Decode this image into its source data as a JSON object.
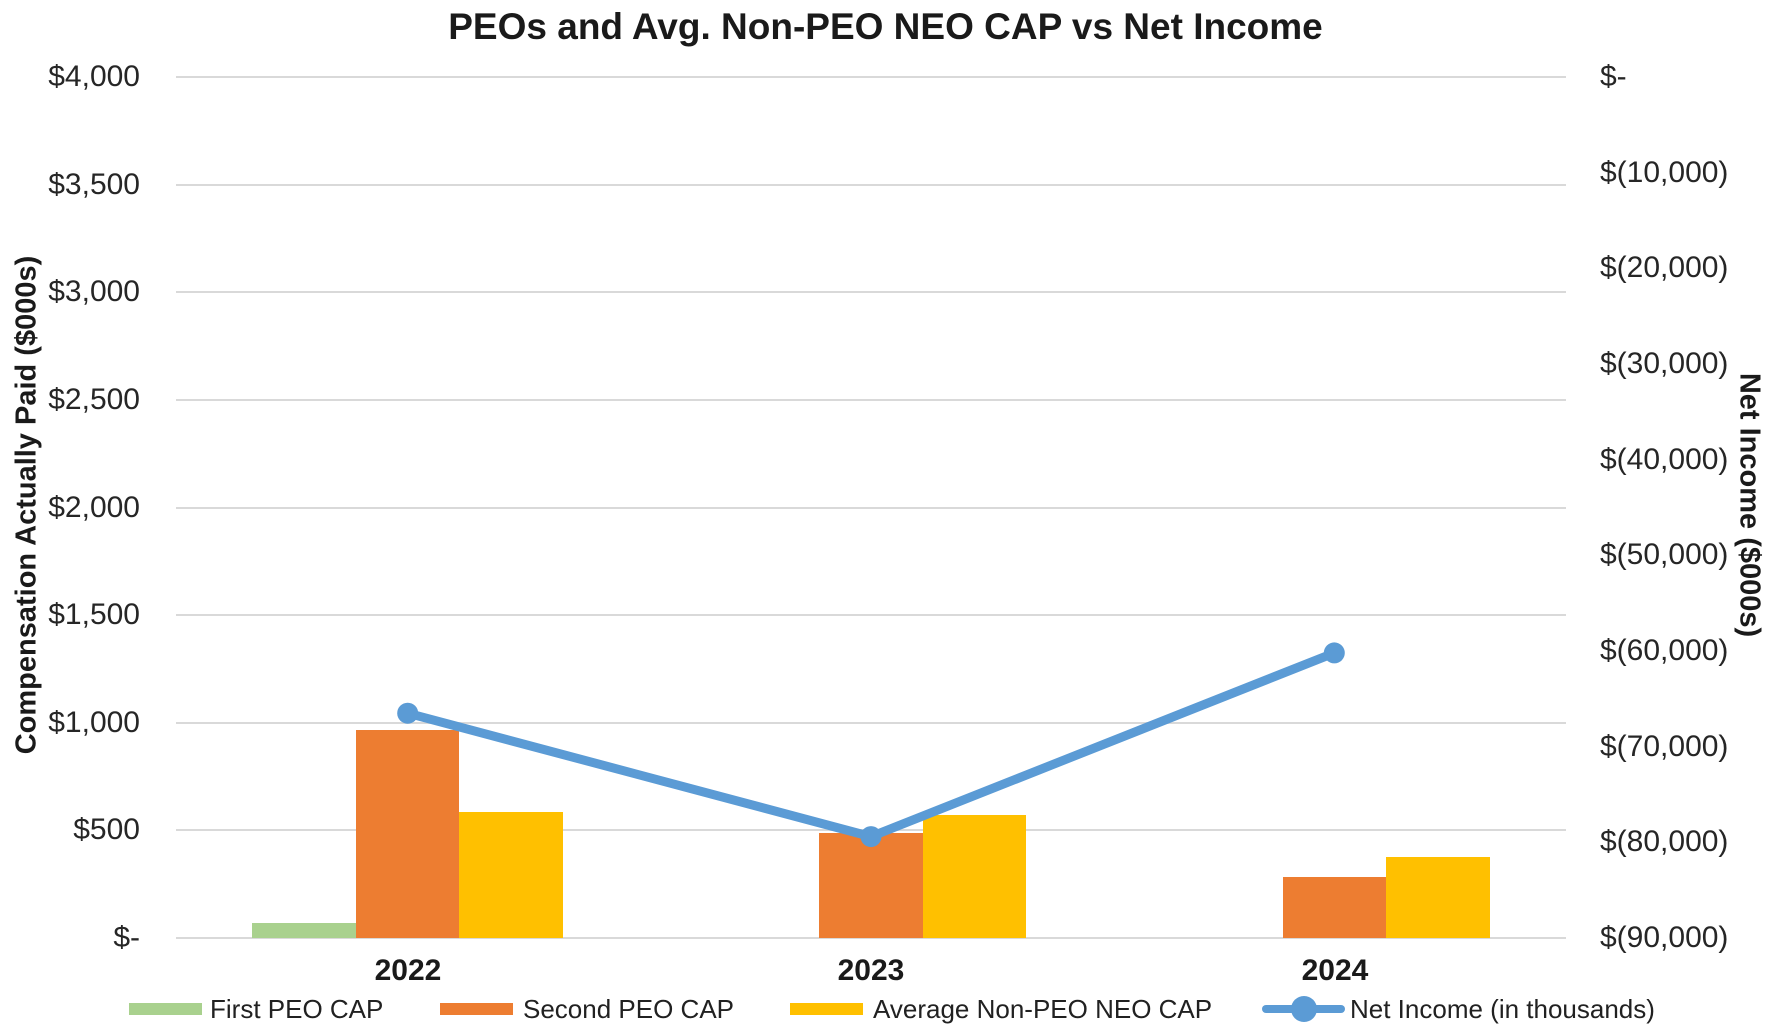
{
  "page": {
    "title": "PEOs and Avg. Non-PEO NEO CAP vs Net Income"
  },
  "chart_data": {
    "type": "combo-bar-line",
    "title": "PEOs and Avg. Non-PEO NEO CAP vs Net Income",
    "categories": [
      "2022",
      "2023",
      "2024"
    ],
    "bar_series": [
      {
        "name": "First PEO CAP",
        "color": "#A9D18E",
        "values": [
          70,
          0,
          0
        ]
      },
      {
        "name": "Second PEO CAP",
        "color": "#ED7D31",
        "values": [
          965,
          490,
          285
        ]
      },
      {
        "name": "Average Non-PEO NEO CAP",
        "color": "#FFC000",
        "values": [
          585,
          570,
          375
        ]
      }
    ],
    "line_series": {
      "name": "Net Income (in thousands)",
      "color": "#5B9BD5",
      "axis": "right",
      "values": [
        -66500,
        -79400,
        -60200
      ]
    },
    "left_axis": {
      "title": "Compensation Actually Paid ($000s)",
      "min": 0,
      "max": 4000,
      "step": 500,
      "tick_labels": [
        "$4,000",
        "$3,500",
        "$3,000",
        "$2,500",
        "$2,000",
        "$1,500",
        "$1,000",
        "$500",
        "$-"
      ]
    },
    "right_axis": {
      "title": "Net Income ($000s)",
      "min": 0,
      "max": -90000,
      "step": -10000,
      "tick_labels": [
        "$-",
        "$(10,000)",
        "$(20,000)",
        "$(30,000)",
        "$(40,000)",
        "$(50,000)",
        "$(60,000)",
        "$(70,000)",
        "$(80,000)",
        "$(90,000)"
      ]
    },
    "legend": {
      "position": "bottom",
      "items": [
        "First PEO CAP",
        "Second PEO CAP",
        "Average Non-PEO NEO CAP",
        "Net Income (in thousands)"
      ]
    },
    "grid": {
      "horizontal": true,
      "color": "#D9D9D9"
    }
  }
}
